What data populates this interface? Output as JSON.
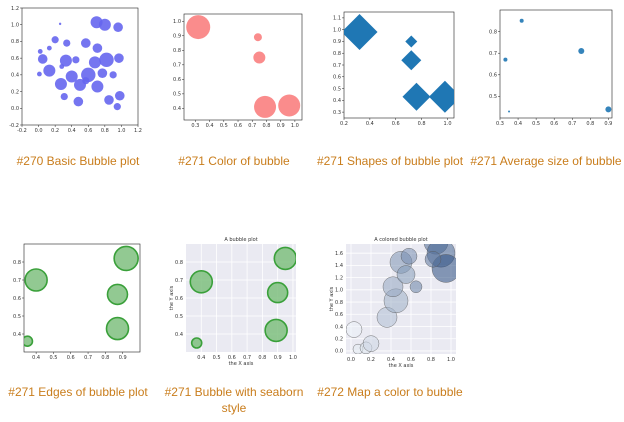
{
  "gallery": {
    "items": [
      {
        "caption": "#270 Basic Bubble plot",
        "chart_data": {
          "type": "scatter",
          "xlim": [
            -0.2,
            1.2
          ],
          "ylim": [
            -0.2,
            1.2
          ],
          "x_ticks": [
            "-0.2",
            "0.0",
            "0.2",
            "0.4",
            "0.6",
            "0.8",
            "1.0",
            "1.2"
          ],
          "y_ticks": [
            "-0.2",
            "0.0",
            "0.2",
            "0.4",
            "0.6",
            "0.8",
            "1.0",
            "1.2"
          ],
          "color": "#6666ee",
          "points": [
            {
              "x": 0.26,
              "y": 1.01,
              "s": 1
            },
            {
              "x": 0.8,
              "y": 1.0,
              "s": 5
            },
            {
              "x": 0.7,
              "y": 1.03,
              "s": 5
            },
            {
              "x": 0.96,
              "y": 0.97,
              "s": 4
            },
            {
              "x": 0.57,
              "y": 0.78,
              "s": 4
            },
            {
              "x": 0.2,
              "y": 0.82,
              "s": 3
            },
            {
              "x": 0.13,
              "y": 0.72,
              "s": 2
            },
            {
              "x": 0.34,
              "y": 0.78,
              "s": 3
            },
            {
              "x": 0.71,
              "y": 0.72,
              "s": 4
            },
            {
              "x": 0.05,
              "y": 0.59,
              "s": 4
            },
            {
              "x": 0.33,
              "y": 0.57,
              "s": 5
            },
            {
              "x": 0.68,
              "y": 0.55,
              "s": 5
            },
            {
              "x": 0.82,
              "y": 0.58,
              "s": 6
            },
            {
              "x": 0.97,
              "y": 0.6,
              "s": 4
            },
            {
              "x": 0.13,
              "y": 0.45,
              "s": 5
            },
            {
              "x": 0.01,
              "y": 0.41,
              "s": 2
            },
            {
              "x": 0.4,
              "y": 0.38,
              "s": 5
            },
            {
              "x": 0.6,
              "y": 0.4,
              "s": 6
            },
            {
              "x": 0.77,
              "y": 0.42,
              "s": 4
            },
            {
              "x": 0.9,
              "y": 0.4,
              "s": 3
            },
            {
              "x": 0.27,
              "y": 0.29,
              "s": 5
            },
            {
              "x": 0.5,
              "y": 0.28,
              "s": 5
            },
            {
              "x": 0.71,
              "y": 0.26,
              "s": 5
            },
            {
              "x": 0.31,
              "y": 0.14,
              "s": 3
            },
            {
              "x": 0.48,
              "y": 0.08,
              "s": 4
            },
            {
              "x": 0.85,
              "y": 0.1,
              "s": 4
            },
            {
              "x": 0.98,
              "y": 0.15,
              "s": 4
            },
            {
              "x": 0.95,
              "y": 0.02,
              "s": 3
            },
            {
              "x": 0.45,
              "y": 0.58,
              "s": 3
            },
            {
              "x": 0.02,
              "y": 0.68,
              "s": 2
            },
            {
              "x": 0.57,
              "y": 0.33,
              "s": 3
            },
            {
              "x": 0.28,
              "y": 0.5,
              "s": 2
            }
          ]
        }
      },
      {
        "caption": "#271 Color of bubble",
        "chart_data": {
          "type": "scatter",
          "xlim": [
            0.22,
            1.05
          ],
          "ylim": [
            0.32,
            1.05
          ],
          "x_ticks": [
            "0.3",
            "0.4",
            "0.5",
            "0.6",
            "0.7",
            "0.8",
            "0.9",
            "1.0"
          ],
          "y_ticks": [
            "0.4",
            "0.5",
            "0.6",
            "0.7",
            "0.8",
            "0.9",
            "1.0"
          ],
          "color": "#fa8080",
          "points": [
            {
              "x": 0.32,
              "y": 0.96,
              "s": 12
            },
            {
              "x": 0.74,
              "y": 0.89,
              "s": 4
            },
            {
              "x": 0.75,
              "y": 0.75,
              "s": 6
            },
            {
              "x": 0.79,
              "y": 0.41,
              "s": 11
            },
            {
              "x": 0.96,
              "y": 0.42,
              "s": 11
            }
          ]
        }
      },
      {
        "caption": "#271 Shapes of bubble plot",
        "chart_data": {
          "type": "scatter",
          "marker": "diamond",
          "xlim": [
            0.2,
            1.05
          ],
          "ylim": [
            0.25,
            1.15
          ],
          "x_ticks": [
            "0.2",
            "0.4",
            "0.6",
            "0.8",
            "1.0"
          ],
          "y_ticks": [
            "0.3",
            "0.4",
            "0.5",
            "0.6",
            "0.7",
            "0.8",
            "0.9",
            "1.0",
            "1.1"
          ],
          "color": "#1f77b4",
          "points": [
            {
              "x": 0.32,
              "y": 0.98,
              "s": 18
            },
            {
              "x": 0.72,
              "y": 0.9,
              "s": 6
            },
            {
              "x": 0.72,
              "y": 0.74,
              "s": 10
            },
            {
              "x": 0.76,
              "y": 0.43,
              "s": 14
            },
            {
              "x": 0.98,
              "y": 0.43,
              "s": 16
            }
          ]
        }
      },
      {
        "caption": "#271 Average size of bubble",
        "chart_data": {
          "type": "scatter",
          "xlim": [
            0.3,
            0.92
          ],
          "ylim": [
            0.4,
            0.9
          ],
          "x_ticks": [
            "0.3",
            "0.4",
            "0.5",
            "0.6",
            "0.7",
            "0.8",
            "0.9"
          ],
          "y_ticks": [
            "0.5",
            "0.6",
            "0.7",
            "0.8"
          ],
          "color": "#1f77b4",
          "points": [
            {
              "x": 0.33,
              "y": 0.67,
              "s": 2
            },
            {
              "x": 0.42,
              "y": 0.85,
              "s": 2
            },
            {
              "x": 0.35,
              "y": 0.43,
              "s": 1
            },
            {
              "x": 0.75,
              "y": 0.71,
              "s": 3
            },
            {
              "x": 0.9,
              "y": 0.44,
              "s": 3
            }
          ]
        }
      },
      {
        "caption": "#271 Edges of bubble plot",
        "chart_data": {
          "type": "scatter",
          "xlim": [
            0.33,
            1.0
          ],
          "ylim": [
            0.3,
            0.9
          ],
          "x_ticks": [
            "0.4",
            "0.5",
            "0.6",
            "0.7",
            "0.8",
            "0.9"
          ],
          "y_ticks": [
            "0.4",
            "0.5",
            "0.6",
            "0.7",
            "0.8"
          ],
          "color": "#7fc07f",
          "edge": "#3aa03a",
          "points": [
            {
              "x": 0.92,
              "y": 0.82,
              "s": 12
            },
            {
              "x": 0.4,
              "y": 0.7,
              "s": 11
            },
            {
              "x": 0.87,
              "y": 0.62,
              "s": 10
            },
            {
              "x": 0.87,
              "y": 0.43,
              "s": 11
            },
            {
              "x": 0.35,
              "y": 0.36,
              "s": 5
            }
          ]
        }
      },
      {
        "caption": "#271 Bubble with seaborn style",
        "chart_data": {
          "type": "scatter",
          "title": "A bubble plot",
          "xlabel": "the X axis",
          "ylabel": "the Y axis",
          "xlim": [
            0.3,
            1.02
          ],
          "ylim": [
            0.3,
            0.9
          ],
          "x_ticks": [
            "0.4",
            "0.5",
            "0.6",
            "0.7",
            "0.8",
            "0.9",
            "1.0"
          ],
          "y_ticks": [
            "0.4",
            "0.5",
            "0.6",
            "0.7",
            "0.8"
          ],
          "grid": true,
          "color": "#7fc07f",
          "edge": "#3aa03a",
          "points": [
            {
              "x": 0.95,
              "y": 0.82,
              "s": 11
            },
            {
              "x": 0.4,
              "y": 0.69,
              "s": 11
            },
            {
              "x": 0.9,
              "y": 0.63,
              "s": 10
            },
            {
              "x": 0.89,
              "y": 0.42,
              "s": 11
            },
            {
              "x": 0.37,
              "y": 0.35,
              "s": 5
            }
          ]
        }
      },
      {
        "caption": "#272 Map a color to bubble",
        "chart_data": {
          "type": "scatter",
          "title": "A colored bubble plot",
          "xlabel": "the X axis",
          "ylabel": "the Y axis",
          "xlim": [
            -0.05,
            1.05
          ],
          "ylim": [
            -0.05,
            1.75
          ],
          "x_ticks": [
            "0.0",
            "0.2",
            "0.4",
            "0.6",
            "0.8",
            "1.0"
          ],
          "y_ticks": [
            "0.0",
            "0.2",
            "0.4",
            "0.6",
            "0.8",
            "1.0",
            "1.2",
            "1.4",
            "1.6"
          ],
          "grid": true,
          "colormap": "Blues",
          "points": [
            {
              "x": 0.03,
              "y": 0.35,
              "s": 8,
              "c": 0.05
            },
            {
              "x": 0.07,
              "y": 0.03,
              "s": 5,
              "c": 0.08
            },
            {
              "x": 0.15,
              "y": 0.05,
              "s": 6,
              "c": 0.12
            },
            {
              "x": 0.2,
              "y": 0.12,
              "s": 8,
              "c": 0.18
            },
            {
              "x": 0.36,
              "y": 0.55,
              "s": 10,
              "c": 0.3
            },
            {
              "x": 0.45,
              "y": 0.82,
              "s": 12,
              "c": 0.38
            },
            {
              "x": 0.42,
              "y": 1.05,
              "s": 10,
              "c": 0.42
            },
            {
              "x": 0.5,
              "y": 1.45,
              "s": 11,
              "c": 0.5
            },
            {
              "x": 0.58,
              "y": 1.55,
              "s": 8,
              "c": 0.55
            },
            {
              "x": 0.65,
              "y": 1.05,
              "s": 6,
              "c": 0.6
            },
            {
              "x": 0.85,
              "y": 1.78,
              "s": 12,
              "c": 0.7
            },
            {
              "x": 0.9,
              "y": 1.6,
              "s": 14,
              "c": 0.75
            },
            {
              "x": 0.95,
              "y": 1.35,
              "s": 14,
              "c": 0.85
            },
            {
              "x": 0.82,
              "y": 1.5,
              "s": 8,
              "c": 0.65
            },
            {
              "x": 0.55,
              "y": 1.25,
              "s": 9,
              "c": 0.48
            }
          ]
        }
      }
    ]
  }
}
